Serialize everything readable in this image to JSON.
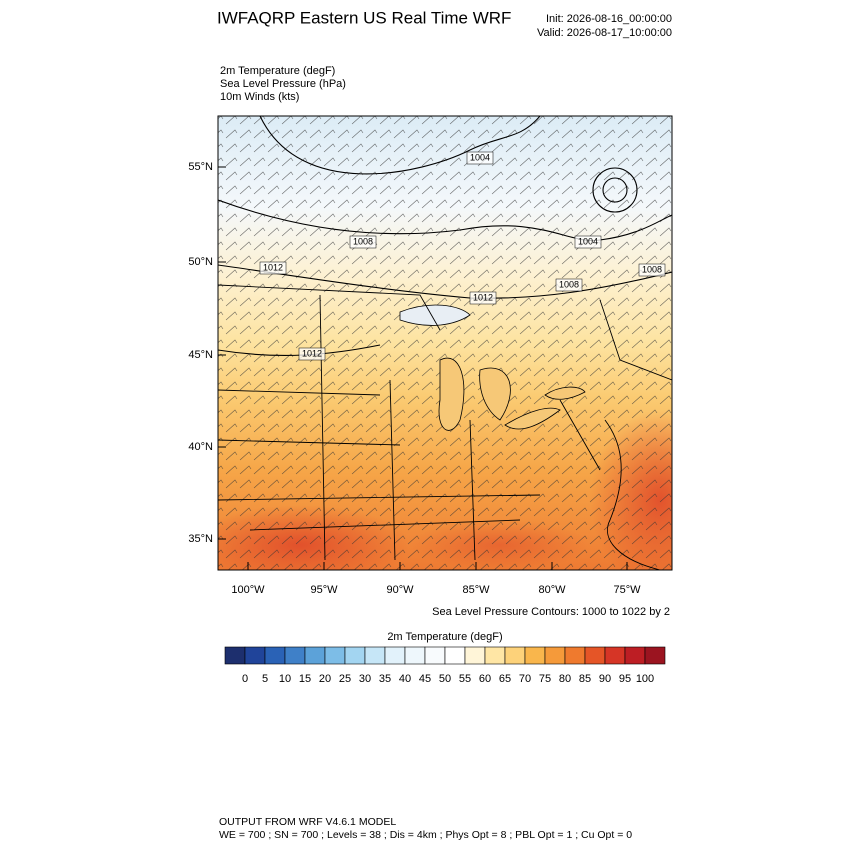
{
  "header": {
    "title": "IWFAQRP Eastern US Real Time WRF",
    "init": "Init: 2026-08-16_00:00:00",
    "valid": "Valid: 2026-08-17_10:00:00"
  },
  "fields": [
    "2m Temperature   (degF)",
    "Sea Level Pressure   (hPa)",
    "10m Winds   (kts)"
  ],
  "map": {
    "lat_labels": [
      "55°N",
      "50°N",
      "45°N",
      "40°N",
      "35°N"
    ],
    "lon_labels": [
      "100°W",
      "95°W",
      "90°W",
      "85°W",
      "80°W",
      "75°W"
    ],
    "contour_labels": [
      "1004",
      "1008",
      "1012",
      "1004",
      "1008",
      "1008",
      "1012",
      "1012"
    ],
    "contour_note": "Sea Level Pressure Contours: 1000 to 1022 by 2"
  },
  "colorbar": {
    "title": "2m Temperature  (degF)",
    "labels": [
      "0",
      "5",
      "10",
      "15",
      "20",
      "25",
      "30",
      "35",
      "40",
      "45",
      "50",
      "55",
      "60",
      "65",
      "70",
      "75",
      "80",
      "85",
      "90",
      "95",
      "100"
    ],
    "colors": [
      "#1d2f6e",
      "#20449a",
      "#2a62b6",
      "#3f80c8",
      "#5ca2d9",
      "#7dbde7",
      "#a3d5f1",
      "#c6e6f7",
      "#e2f2fb",
      "#eef7fc",
      "#f8fbfd",
      "#ffffff",
      "#fff5d8",
      "#ffe6a5",
      "#fdd27a",
      "#f9b64c",
      "#f59a3a",
      "#ef7a2e",
      "#e55527",
      "#d63526",
      "#bd1e24",
      "#9b1420"
    ]
  },
  "footer": {
    "model": "OUTPUT FROM WRF V4.6.1 MODEL",
    "settings": "WE = 700 ; SN = 700 ; Levels = 38 ; Dis = 4km ; Phys Opt = 8 ; PBL Opt = 1 ; Cu Opt = 0"
  }
}
